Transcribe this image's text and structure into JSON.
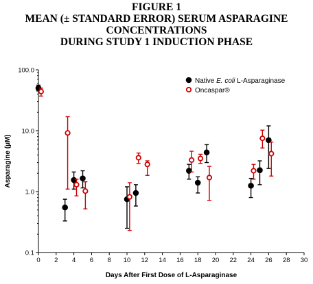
{
  "figure": {
    "title_lines": [
      "FIGURE 1",
      "MEAN (± STANDARD ERROR) SERUM ASPARAGINE",
      "CONCENTRATIONS",
      "DURING STUDY 1 INDUCTION PHASE"
    ]
  },
  "chart_data": {
    "type": "scatter",
    "xlabel": "Days After First Dose of L-Asparaginase",
    "ylabel": "Asparagine (µM)",
    "xlim": [
      0,
      30
    ],
    "x_ticks": [
      0,
      2,
      4,
      6,
      8,
      10,
      12,
      14,
      16,
      18,
      20,
      22,
      24,
      26,
      28,
      30
    ],
    "ylim": [
      0.1,
      100
    ],
    "y_scale": "log",
    "y_ticks": [
      0.1,
      1,
      10,
      100
    ],
    "y_tick_labels": [
      "0.1",
      "1.0",
      "10.0",
      "100.0"
    ],
    "grid": false,
    "legend_position": "top-right",
    "series": [
      {
        "name": "Native E. coli L-Asparaginase",
        "name_plain": "Native ",
        "name_italic": "E. coli",
        "name_rest": " L-Asparaginase",
        "color": "#000000",
        "marker": "filled-circle",
        "points": [
          {
            "x": 0,
            "y": 50,
            "lo": 45,
            "hi": 56
          },
          {
            "x": 3,
            "y": 0.55,
            "lo": 0.33,
            "hi": 0.75
          },
          {
            "x": 4,
            "y": 1.55,
            "lo": 1.1,
            "hi": 2.1
          },
          {
            "x": 5,
            "y": 1.65,
            "lo": 1.15,
            "hi": 2.2
          },
          {
            "x": 10,
            "y": 0.75,
            "lo": 0.25,
            "hi": 1.2
          },
          {
            "x": 11,
            "y": 0.95,
            "lo": 0.58,
            "hi": 1.3
          },
          {
            "x": 17,
            "y": 2.2,
            "lo": 1.6,
            "hi": 2.8
          },
          {
            "x": 18,
            "y": 1.4,
            "lo": 0.95,
            "hi": 1.75
          },
          {
            "x": 19,
            "y": 4.4,
            "lo": 3.0,
            "hi": 5.9
          },
          {
            "x": 24,
            "y": 1.25,
            "lo": 0.8,
            "hi": 1.65
          },
          {
            "x": 25,
            "y": 2.25,
            "lo": 1.3,
            "hi": 3.2
          },
          {
            "x": 26,
            "y": 7.0,
            "lo": 2.4,
            "hi": 12.0
          }
        ]
      },
      {
        "name": "Oncaspar®",
        "color": "#cc0000",
        "marker": "open-circle",
        "points": [
          {
            "x": 0.3,
            "y": 44,
            "lo": 37,
            "hi": 50
          },
          {
            "x": 3.3,
            "y": 9.2,
            "lo": 1.1,
            "hi": 17.0
          },
          {
            "x": 4.3,
            "y": 1.3,
            "lo": 0.85,
            "hi": 1.6
          },
          {
            "x": 5.3,
            "y": 1.02,
            "lo": 0.52,
            "hi": 1.45
          },
          {
            "x": 10.3,
            "y": 0.82,
            "lo": 0.23,
            "hi": 1.4
          },
          {
            "x": 11.3,
            "y": 3.6,
            "lo": 2.9,
            "hi": 4.3
          },
          {
            "x": 12.3,
            "y": 2.8,
            "lo": 1.85,
            "hi": 3.2
          },
          {
            "x": 17.3,
            "y": 3.3,
            "lo": 2.1,
            "hi": 4.6
          },
          {
            "x": 18.3,
            "y": 3.5,
            "lo": 2.9,
            "hi": 4.1
          },
          {
            "x": 19.3,
            "y": 1.7,
            "lo": 0.72,
            "hi": 2.6
          },
          {
            "x": 24.3,
            "y": 2.2,
            "lo": 1.6,
            "hi": 2.8
          },
          {
            "x": 25.3,
            "y": 7.5,
            "lo": 5.2,
            "hi": 10.2
          },
          {
            "x": 26.3,
            "y": 4.2,
            "lo": 1.8,
            "hi": 6.5
          }
        ]
      }
    ]
  }
}
